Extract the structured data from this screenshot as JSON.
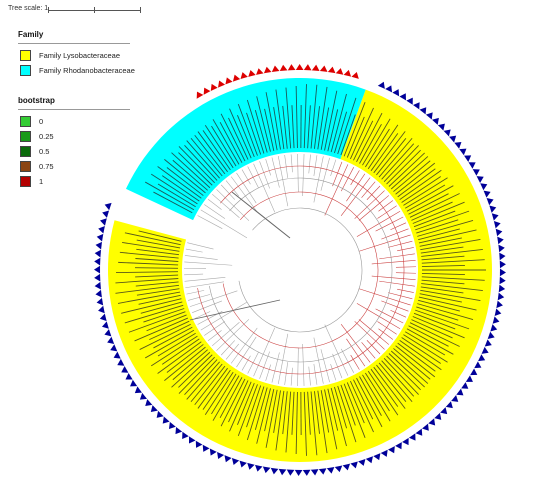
{
  "tree_scale": {
    "label": "Tree scale: 1"
  },
  "family_legend": {
    "title": "Family",
    "items": [
      {
        "label": "Family Lysobacteraceae",
        "color": "#ffff00"
      },
      {
        "label": "Family Rhodanobacteraceae",
        "color": "#00ffff"
      }
    ]
  },
  "bootstrap_legend": {
    "title": "bootstrap",
    "items": [
      {
        "label": "0",
        "color": "#33cc33"
      },
      {
        "label": "0.25",
        "color": "#1a9a1a"
      },
      {
        "label": "0.5",
        "color": "#0a6a0a"
      },
      {
        "label": "0.75",
        "color": "#8b4513"
      },
      {
        "label": "1",
        "color": "#b30000"
      }
    ]
  },
  "marker_colors": {
    "lysobacteraceae": "#000099",
    "rhodanobacteraceae": "#dd0000"
  }
}
